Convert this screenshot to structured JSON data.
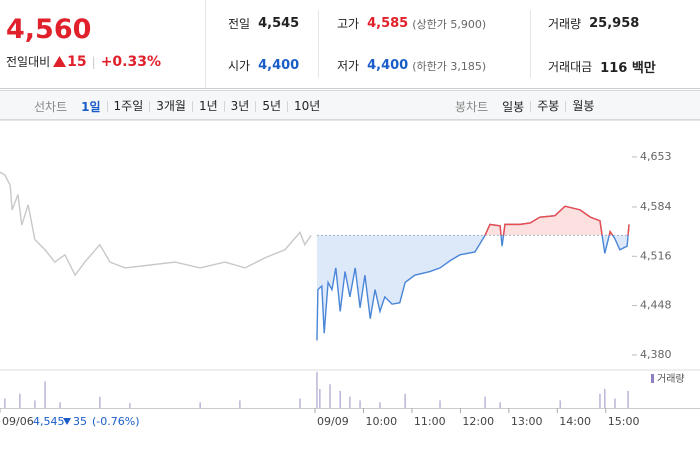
{
  "summary": {
    "price": "4,560",
    "change_label": "전일대비",
    "change": "15",
    "rate": "+0.33%",
    "stats": [
      {
        "label": "전일",
        "value": "4,545"
      },
      {
        "label": "고가",
        "value": "4,585",
        "extra": "(상한가 5,900)"
      },
      {
        "label": "거래량",
        "value": "25,958"
      },
      {
        "label": "시가",
        "value": "4,400"
      },
      {
        "label": "저가",
        "value": "4,400",
        "extra": "(하한가 3,185)"
      },
      {
        "label": "거래대금",
        "value": "116 백만"
      }
    ]
  },
  "tabs": {
    "line_label": "선차트",
    "line": [
      "1일",
      "1주일",
      "3개월",
      "1년",
      "3년",
      "5년",
      "10년"
    ],
    "candle_label": "봉차트",
    "candle": [
      "일봉",
      "주봉",
      "월봉"
    ]
  },
  "footer": {
    "price": "4,545",
    "change": "35",
    "rate": "(-0.76%)"
  },
  "chart_data": [
    {
      "type": "line",
      "x": [
        0,
        0.1,
        0.21,
        0.25,
        0.37,
        0.45,
        0.58,
        0.72,
        0.93,
        1.13,
        1.34,
        1.55,
        1.75,
        2.06,
        2.27,
        2.58,
        3.1,
        3.61,
        4.13,
        4.64,
        5.06,
        5.47,
        5.88,
        6.19,
        6.29,
        6.42,
        6.54,
        6.56,
        6.64,
        6.69,
        6.77,
        6.85,
        6.93,
        7.02,
        7.12,
        7.22,
        7.33,
        7.43,
        7.53,
        7.64,
        7.74,
        7.84,
        7.94,
        8.09,
        8.25,
        8.36,
        8.56,
        8.87,
        9.08,
        9.29,
        9.49,
        9.8,
        10.01,
        10.11,
        10.32,
        10.36,
        10.42,
        10.73,
        10.94,
        11.14,
        11.45,
        11.66,
        11.97,
        12.18,
        12.38,
        12.48,
        12.59,
        12.69,
        12.79,
        12.94,
        12.98
      ],
      "series": [
        {
          "color": "#c8c8c8",
          "values": [
            4632,
            4628,
            4614,
            4580,
            4601,
            4559,
            4587,
            4539,
            4525,
            4508,
            4518,
            4490,
            4508,
            4532,
            4508,
            4500,
            4504,
            4508,
            4500,
            4508,
            4500,
            4514,
            4525,
            4549,
            4532,
            4545,
            null,
            null,
            null,
            null,
            null,
            null,
            null,
            null,
            null,
            null,
            null,
            null,
            null,
            null,
            null,
            null,
            null,
            null,
            null,
            null,
            null,
            null,
            null,
            null,
            null,
            null,
            null,
            null,
            null,
            null,
            null,
            null,
            null,
            null,
            null,
            null,
            null,
            null,
            null,
            null,
            null,
            null,
            null,
            null,
            null
          ]
        },
        {
          "color": "#4a86d8",
          "color_above": "#ee4b4b",
          "fill_below": "#dde8f8",
          "fill_above": "#fde1e1",
          "values": [
            null,
            null,
            null,
            null,
            null,
            null,
            null,
            null,
            null,
            null,
            null,
            null,
            null,
            null,
            null,
            null,
            null,
            null,
            null,
            null,
            null,
            null,
            null,
            null,
            null,
            null,
            4400,
            4470,
            4475,
            4410,
            4480,
            4470,
            4500,
            4440,
            4495,
            4460,
            4500,
            4445,
            4490,
            4430,
            4470,
            4440,
            4460,
            4450,
            4452,
            4480,
            4490,
            4495,
            4500,
            4510,
            4518,
            4522,
            4545,
            4560,
            4558,
            4530,
            4560,
            4560,
            4562,
            4570,
            4572,
            4585,
            4580,
            4570,
            4565,
            4520,
            4550,
            4540,
            4525,
            4530,
            4560
          ]
        }
      ],
      "baseline": 4545,
      "xlim": [
        0,
        13
      ],
      "xticks": [
        {
          "value": 0,
          "label": "09/06"
        },
        {
          "value": 6.5,
          "label": "09/09"
        },
        {
          "value": 7.5,
          "label": "10:00"
        },
        {
          "value": 8.5,
          "label": "11:00"
        },
        {
          "value": 9.5,
          "label": "12:00"
        },
        {
          "value": 10.5,
          "label": "13:00"
        },
        {
          "value": 11.5,
          "label": "14:00"
        },
        {
          "value": 12.5,
          "label": "15:00"
        }
      ],
      "ylim": [
        4362,
        4697
      ],
      "yticks": [
        {
          "value": 4653,
          "label": "4,653"
        },
        {
          "value": 4584,
          "label": "4,584"
        },
        {
          "value": 4516,
          "label": "4,516"
        },
        {
          "value": 4448,
          "label": "4,448"
        },
        {
          "value": 4380,
          "label": "4,380"
        }
      ]
    },
    {
      "type": "bar",
      "legend": "거래량",
      "color": "#bbb5d8",
      "legend_color": "#8d7fc0",
      "x": [
        0.1,
        0.41,
        0.72,
        0.93,
        1.24,
        2.06,
        2.68,
        4.13,
        4.95,
        6.19,
        6.54,
        6.6,
        6.81,
        7.02,
        7.22,
        7.43,
        7.84,
        8.36,
        9.08,
        10.01,
        10.32,
        11.56,
        12.38,
        12.48,
        12.69,
        12.96
      ],
      "values": [
        1000,
        1500,
        800,
        2800,
        600,
        1200,
        500,
        600,
        800,
        1000,
        3800,
        2000,
        2500,
        1800,
        1200,
        800,
        600,
        1500,
        800,
        1200,
        600,
        800,
        1500,
        2000,
        1000,
        1800
      ],
      "xlim": [
        0,
        13
      ],
      "ylim": [
        0,
        4000
      ]
    }
  ]
}
